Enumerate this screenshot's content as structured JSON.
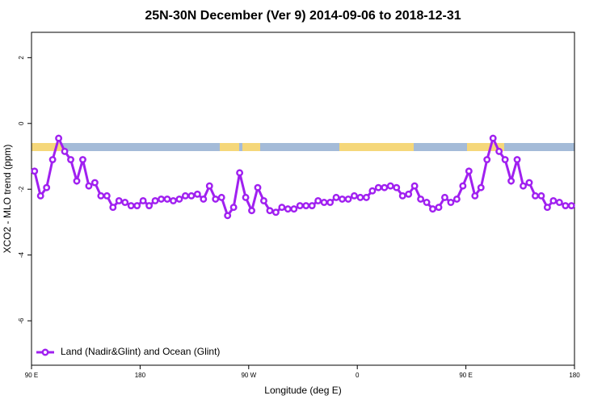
{
  "chart_data": {
    "type": "line",
    "title": "25N-30N December (Ver 9)   2014-09-06 to 2018-12-31",
    "xlabel": "Longitude (deg E)",
    "ylabel": "XCO2 - MLO trend (ppm)",
    "xlim": [
      90,
      540
    ],
    "ylim": [
      -7.35,
      2.77
    ],
    "xticks": [
      {
        "value": 90,
        "label": "90 E"
      },
      180,
      {
        "value": 270,
        "label": "90 W"
      },
      {
        "value": 360,
        "label": "0"
      },
      {
        "value": 450,
        "label": "90 E"
      },
      {
        "value": 540,
        "label": "180"
      }
    ],
    "yticks": [
      2,
      0,
      -2,
      -4,
      -6
    ],
    "legend": "bottom-left",
    "x": [
      92.5,
      97.5,
      102.5,
      107.5,
      112.5,
      117.5,
      122.5,
      127.5,
      132.5,
      137.5,
      142.5,
      147.5,
      152.5,
      157.5,
      162.5,
      167.5,
      172.5,
      177.5,
      182.5,
      187.5,
      192.5,
      197.5,
      202.5,
      207.5,
      212.5,
      217.5,
      222.5,
      227.5,
      232.5,
      237.5,
      242.5,
      247.5,
      252.5,
      257.5,
      262.5,
      267.5,
      272.5,
      277.5,
      282.5,
      287.5,
      292.5,
      297.5,
      302.5,
      307.5,
      312.5,
      317.5,
      322.5,
      327.5,
      332.5,
      337.5,
      342.5,
      347.5,
      352.5,
      357.5,
      362.5,
      367.5,
      372.5,
      377.5,
      382.5,
      387.5,
      392.5,
      397.5,
      402.5,
      407.5,
      412.5,
      417.5,
      422.5,
      427.5,
      432.5,
      437.5,
      442.5,
      447.5,
      452.5,
      457.5,
      462.5,
      467.5,
      472.5,
      477.5,
      482.5,
      487.5,
      492.5,
      497.5,
      502.5,
      507.5,
      512.5,
      517.5,
      522.5,
      527.5,
      532.5,
      537.5
    ],
    "series": [
      {
        "name": "Land (Nadir&Glint) and Ocean (Glint)",
        "color": "#a020f0",
        "values": [
          -1.45,
          -2.2,
          -1.95,
          -1.1,
          -0.45,
          -0.85,
          -1.1,
          -1.75,
          -1.1,
          -1.9,
          -1.8,
          -2.2,
          -2.2,
          -2.55,
          -2.35,
          -2.4,
          -2.5,
          -2.5,
          -2.35,
          -2.5,
          -2.35,
          -2.3,
          -2.3,
          -2.35,
          -2.3,
          -2.2,
          -2.2,
          -2.15,
          -2.3,
          -1.9,
          -2.3,
          -2.25,
          -2.8,
          -2.55,
          -1.5,
          -2.25,
          -2.65,
          -1.95,
          -2.35,
          -2.65,
          -2.7,
          -2.55,
          -2.6,
          -2.6,
          -2.5,
          -2.5,
          -2.5,
          -2.35,
          -2.4,
          -2.4,
          -2.25,
          -2.3,
          -2.3,
          -2.2,
          -2.25,
          -2.25,
          -2.05,
          -1.95,
          -1.95,
          -1.9,
          -1.95,
          -2.2,
          -2.15,
          -1.9,
          -2.3,
          -2.4,
          -2.6,
          -2.55,
          -2.25,
          -2.4,
          -2.3,
          -1.9,
          -1.45,
          -2.2,
          -1.95,
          -1.1,
          -0.45,
          -0.85,
          -1.1,
          -1.75,
          -1.1,
          -1.9,
          -1.8,
          -2.2,
          -2.2,
          -2.55,
          -2.35,
          -2.4,
          -2.5,
          -2.5
        ]
      }
    ]
  }
}
